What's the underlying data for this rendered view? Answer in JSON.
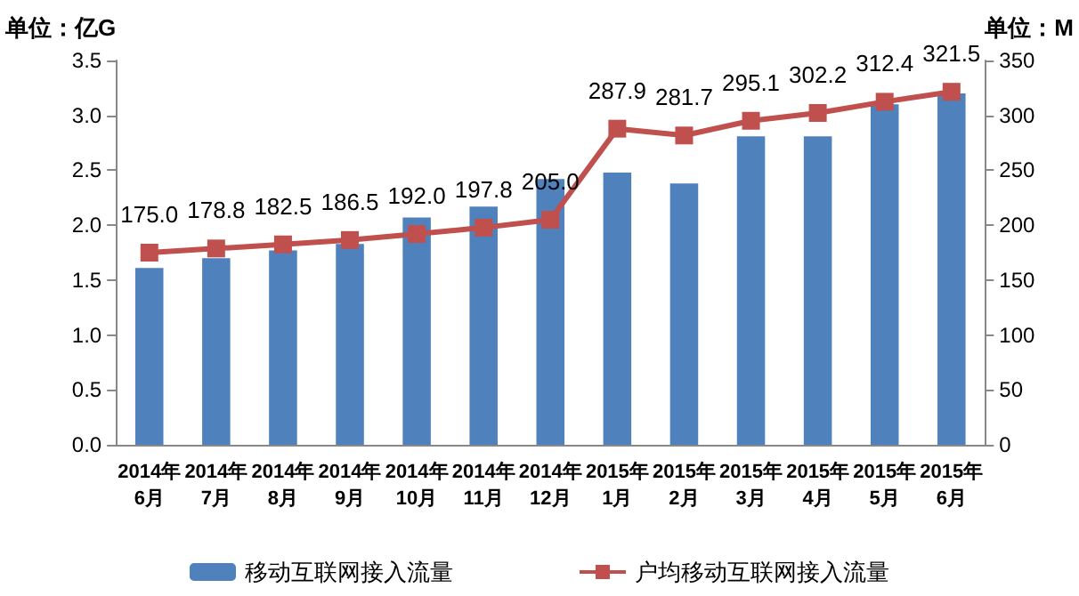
{
  "chart_data": {
    "type": "bar",
    "categories": [
      "2014年\n6月",
      "2014年\n7月",
      "2014年\n8月",
      "2014年\n9月",
      "2014年\n10月",
      "2014年\n11月",
      "2014年\n12月",
      "2015年\n1月",
      "2015年\n2月",
      "2015年\n3月",
      "2015年\n4月",
      "2015年\n5月",
      "2015年\n6月"
    ],
    "ylabel": "单位：亿G",
    "y2label": "单位：M",
    "series": [
      {
        "name": "移动互联网接入流量",
        "color": "#4f81bd",
        "values": [
          1.61,
          1.7,
          1.77,
          1.83,
          2.07,
          2.17,
          2.42,
          2.48,
          2.38,
          2.81,
          2.81,
          3.1,
          3.2
        ]
      },
      {
        "name": "户均移动互联网接入流量",
        "type": "line",
        "axis": "y2",
        "color": "#c0504d",
        "marker": "square",
        "value_labels": [
          "175.0",
          "178.8",
          "182.5",
          "186.5",
          "192.0",
          "197.8",
          "205.0",
          "287.9",
          "281.7",
          "295.1",
          "302.2",
          "312.4",
          "321.5"
        ],
        "values": [
          175.0,
          178.8,
          182.5,
          186.5,
          192.0,
          197.8,
          205.0,
          287.9,
          281.7,
          295.1,
          302.2,
          312.4,
          321.5
        ]
      }
    ],
    "ylim": [
      0,
      3.5
    ],
    "yticks": [
      {
        "value": 0,
        "label": "0.0"
      },
      {
        "value": 0.5,
        "label": "0.5"
      },
      {
        "value": 1,
        "label": "1.0"
      },
      {
        "value": 1.5,
        "label": "1.5"
      },
      {
        "value": 2,
        "label": "2.0"
      },
      {
        "value": 2.5,
        "label": "2.5"
      },
      {
        "value": 3,
        "label": "3.0"
      },
      {
        "value": 3.5,
        "label": "3.5"
      }
    ],
    "y2lim": [
      0,
      350
    ],
    "y2ticks": [
      0,
      50,
      100,
      150,
      200,
      250,
      300,
      350
    ],
    "legend": "bottom",
    "grid": false
  }
}
